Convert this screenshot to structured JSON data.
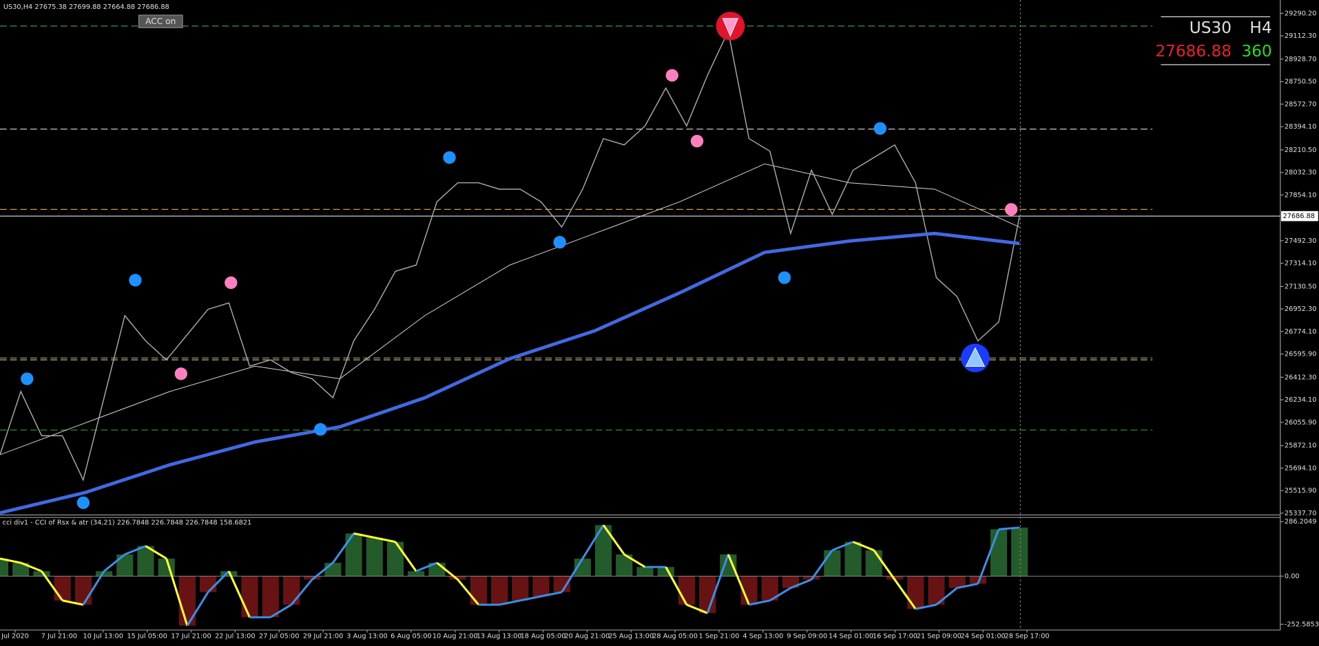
{
  "header": {
    "symbol_info": "US30,H4  27675.38 27699.88 27664.88 27686.88",
    "button": "ACC on"
  },
  "info_panel": {
    "symbol": "US30",
    "timeframe": "H4",
    "price": "27686.88",
    "spread": 360
  },
  "main": {
    "ylim": [
      25330,
      29396
    ],
    "yticks": [
      {
        "value": 29290.2,
        "label": "29290.20"
      },
      {
        "value": 29112.3,
        "label": "29112.30"
      },
      {
        "value": 28928.7,
        "label": "28928.70"
      },
      {
        "value": 28750.5,
        "label": "28750.50"
      },
      {
        "value": 28572.7,
        "label": "28572.70"
      },
      {
        "value": 28394.1,
        "label": "28394.10"
      },
      {
        "value": 28210.5,
        "label": "28210.50"
      },
      {
        "value": 28032.3,
        "label": "28032.30"
      },
      {
        "value": 27854.1,
        "label": "27854.10"
      },
      {
        "value": 27492.3,
        "label": "27492.30"
      },
      {
        "value": 27314.1,
        "label": "27314.10"
      },
      {
        "value": 27130.5,
        "label": "27130.50"
      },
      {
        "value": 26952.3,
        "label": "26952.30"
      },
      {
        "value": 26774.1,
        "label": "26774.10"
      },
      {
        "value": 26595.9,
        "label": "26595.90"
      },
      {
        "value": 26412.3,
        "label": "26412.30"
      },
      {
        "value": 26234.1,
        "label": "26234.10"
      },
      {
        "value": 26055.9,
        "label": "26055.90"
      },
      {
        "value": 25872.1,
        "label": "25872.10"
      },
      {
        "value": 25694.1,
        "label": "25694.10"
      },
      {
        "value": 25515.9,
        "label": "25515.90"
      },
      {
        "value": 25337.7,
        "label": "25337.70"
      }
    ],
    "current_price": {
      "value": 27686.88,
      "label": "27686.88"
    },
    "levels": [
      {
        "value": 29190,
        "color": "#3c9a3c"
      },
      {
        "value": 28375,
        "color": "#c8c8c8"
      },
      {
        "value": 27740,
        "color": "#c8a040"
      },
      {
        "value": 26565,
        "color": "#c8a040"
      },
      {
        "value": 26550,
        "color": "#c8c8c8"
      },
      {
        "value": 25995,
        "color": "#3c9a3c"
      }
    ],
    "close_color": "#a8a8a8",
    "close": [
      25800,
      26300,
      25950,
      25950,
      25600,
      26250,
      26900,
      26700,
      26550,
      26750,
      26950,
      27000,
      26500,
      26550,
      26450,
      26400,
      26250,
      26700,
      26950,
      27250,
      27300,
      27800,
      27950,
      27950,
      27900,
      27900,
      27800,
      27600,
      27900,
      28300,
      28250,
      28400,
      28700,
      28400,
      28800,
      29150,
      28300,
      28200,
      27550,
      28050,
      27700,
      28050,
      28150,
      28250,
      27950,
      27200,
      27050,
      26700,
      26850,
      27687
    ],
    "band_color": "#d8d8d8",
    "band": [
      25800,
      26050,
      26300,
      26500,
      26400,
      26900,
      27300,
      27550,
      27800,
      28100,
      27950,
      27900,
      27600
    ],
    "ma_color": "#4169e1",
    "ma": [
      25340,
      25500,
      25720,
      25900,
      26020,
      26250,
      26560,
      26780,
      27080,
      27400,
      27490,
      27550,
      27470
    ],
    "markers": [
      {
        "x": 1.3,
        "value": 26400,
        "color": "#1e90ff"
      },
      {
        "x": 4.0,
        "value": 25420,
        "color": "#1e90ff"
      },
      {
        "x": 6.5,
        "value": 27180,
        "color": "#1e90ff"
      },
      {
        "x": 15.4,
        "value": 26000,
        "color": "#1e90ff"
      },
      {
        "x": 21.6,
        "value": 28150,
        "color": "#1e90ff"
      },
      {
        "x": 26.9,
        "value": 27480,
        "color": "#1e90ff"
      },
      {
        "x": 37.7,
        "value": 27200,
        "color": "#1e90ff"
      },
      {
        "x": 42.3,
        "value": 28380,
        "color": "#1e90ff"
      },
      {
        "x": 8.7,
        "value": 26440,
        "color": "#ff7fbf"
      },
      {
        "x": 11.1,
        "value": 27160,
        "color": "#ff7fbf"
      },
      {
        "x": 32.3,
        "value": 28800,
        "color": "#ff7fbf"
      },
      {
        "x": 33.5,
        "value": 28280,
        "color": "#ff7fbf"
      },
      {
        "x": 48.6,
        "value": 27740,
        "color": "#ff7fbf"
      }
    ],
    "arrows": [
      {
        "x": 35.1,
        "value": 29190,
        "color": "#e0142a",
        "direction": "down"
      },
      {
        "x": 46.87,
        "value": 26565,
        "color": "#1a3cff",
        "direction": "up"
      }
    ]
  },
  "indicator": {
    "label": "cci div1 - CCI of Rsx & atr (34,21) 226.7848 226.7848 226.7848 158.6821",
    "ylim": [
      -283,
      308
    ],
    "yticks": [
      286.2049,
      {
        "value": 0,
        "label": "0.00"
      },
      -252.5853
    ],
    "rise_color": "#3a8ee6",
    "fall_color": "#ffff33",
    "pos_color": "#2f7a3a",
    "neg_color": "#8b1a1a",
    "values": [
      92,
      70,
      26,
      -128,
      -150,
      26,
      114,
      158,
      92,
      -260,
      -84,
      26,
      -216,
      -216,
      -150,
      -18,
      70,
      224,
      202,
      180,
      26,
      70,
      -18,
      -150,
      -150,
      -128,
      -106,
      -84,
      92,
      268,
      114,
      48,
      48,
      -150,
      -194,
      114,
      -150,
      -128,
      -62,
      -18,
      136,
      180,
      136,
      -18,
      -172,
      -150,
      -62,
      -40,
      246,
      255
    ]
  },
  "time_labels": [
    "Jul 2020",
    "7 Jul 21:00",
    "10 Jul 13:00",
    "15 Jul 05:00",
    "17 Jul 21:00",
    "22 Jul 13:00",
    "27 Jul 05:00",
    "29 Jul 21:00",
    "3 Aug 13:00",
    "6 Aug 05:00",
    "10 Aug 21:00",
    "13 Aug 13:00",
    "18 Aug 05:00",
    "20 Aug 21:00",
    "25 Aug 13:00",
    "28 Aug 05:00",
    "1 Sep 21:00",
    "4 Sep 13:00",
    "9 Sep 09:00",
    "14 Sep 01:00",
    "16 Sep 17:00",
    "21 Sep 09:00",
    "24 Sep 01:00",
    "28 Sep 17:00"
  ]
}
